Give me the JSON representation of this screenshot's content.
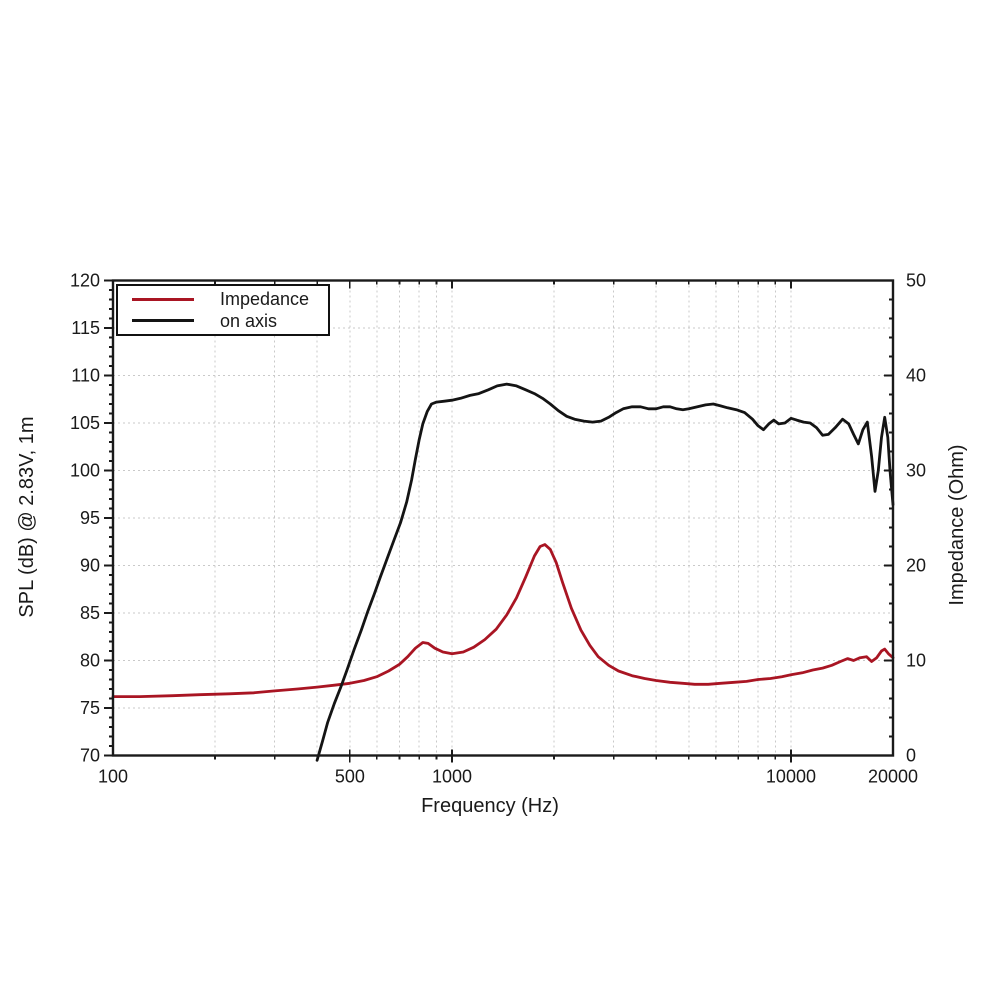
{
  "chart_data": {
    "type": "line",
    "title": "",
    "xlabel": "Frequency (Hz)",
    "ylabel_left": "SPL (dB) @ 2.83V, 1m",
    "ylabel_right": "Impedance (Ohm)",
    "grid": {
      "on": true,
      "color": "#c9c9c9",
      "style": "dotted",
      "horizontal_step_db": 5
    },
    "axes": {
      "x": {
        "scale": "log",
        "min": 100,
        "max": 20000,
        "labeled_ticks": [
          100,
          500,
          1000,
          10000,
          20000
        ]
      },
      "left": {
        "min": 70,
        "max": 120,
        "tick_step": 5,
        "minor_step": 1
      },
      "right": {
        "min": 0,
        "max": 50,
        "tick_step": 10,
        "minor_step": 2
      }
    },
    "legend": {
      "position": "top-left",
      "entries": [
        {
          "label": "Impedance",
          "color": "#a91523"
        },
        {
          "label": "on axis",
          "color": "#141414"
        }
      ]
    },
    "series": [
      {
        "name": "Impedance",
        "axis": "right",
        "units": "Ohm",
        "color": "#a91523",
        "points": [
          [
            100,
            6.2
          ],
          [
            120,
            6.2
          ],
          [
            150,
            6.3
          ],
          [
            180,
            6.4
          ],
          [
            220,
            6.5
          ],
          [
            260,
            6.6
          ],
          [
            300,
            6.8
          ],
          [
            350,
            7.0
          ],
          [
            400,
            7.2
          ],
          [
            450,
            7.4
          ],
          [
            500,
            7.6
          ],
          [
            550,
            7.9
          ],
          [
            600,
            8.3
          ],
          [
            650,
            8.9
          ],
          [
            700,
            9.6
          ],
          [
            740,
            10.4
          ],
          [
            780,
            11.3
          ],
          [
            820,
            11.9
          ],
          [
            850,
            11.8
          ],
          [
            890,
            11.3
          ],
          [
            940,
            10.9
          ],
          [
            1000,
            10.7
          ],
          [
            1080,
            10.9
          ],
          [
            1160,
            11.4
          ],
          [
            1250,
            12.2
          ],
          [
            1350,
            13.3
          ],
          [
            1450,
            14.8
          ],
          [
            1550,
            16.6
          ],
          [
            1650,
            18.8
          ],
          [
            1750,
            21.0
          ],
          [
            1820,
            22.0
          ],
          [
            1880,
            22.2
          ],
          [
            1950,
            21.7
          ],
          [
            2030,
            20.3
          ],
          [
            2120,
            18.2
          ],
          [
            2250,
            15.5
          ],
          [
            2400,
            13.2
          ],
          [
            2550,
            11.6
          ],
          [
            2700,
            10.4
          ],
          [
            2900,
            9.5
          ],
          [
            3100,
            8.9
          ],
          [
            3400,
            8.4
          ],
          [
            3700,
            8.1
          ],
          [
            4000,
            7.9
          ],
          [
            4400,
            7.7
          ],
          [
            4800,
            7.6
          ],
          [
            5200,
            7.5
          ],
          [
            5700,
            7.5
          ],
          [
            6200,
            7.6
          ],
          [
            6800,
            7.7
          ],
          [
            7400,
            7.8
          ],
          [
            8000,
            8.0
          ],
          [
            8700,
            8.1
          ],
          [
            9400,
            8.3
          ],
          [
            10000,
            8.5
          ],
          [
            10800,
            8.7
          ],
          [
            11600,
            9.0
          ],
          [
            12400,
            9.2
          ],
          [
            13200,
            9.5
          ],
          [
            14000,
            9.9
          ],
          [
            14700,
            10.2
          ],
          [
            15300,
            10.0
          ],
          [
            16000,
            10.3
          ],
          [
            16700,
            10.4
          ],
          [
            17300,
            9.9
          ],
          [
            17900,
            10.3
          ],
          [
            18500,
            11.0
          ],
          [
            18900,
            11.2
          ],
          [
            19400,
            10.7
          ],
          [
            20000,
            10.3
          ]
        ]
      },
      {
        "name": "on axis",
        "axis": "left",
        "units": "dB",
        "color": "#141414",
        "points": [
          [
            400,
            69.5
          ],
          [
            415,
            71.5
          ],
          [
            430,
            73.5
          ],
          [
            450,
            75.5
          ],
          [
            470,
            77.2
          ],
          [
            490,
            79.0
          ],
          [
            515,
            81.2
          ],
          [
            540,
            83.2
          ],
          [
            565,
            85.2
          ],
          [
            590,
            87.0
          ],
          [
            615,
            88.8
          ],
          [
            645,
            90.8
          ],
          [
            675,
            92.7
          ],
          [
            705,
            94.5
          ],
          [
            735,
            96.7
          ],
          [
            760,
            99.0
          ],
          [
            780,
            101.2
          ],
          [
            800,
            103.2
          ],
          [
            820,
            104.9
          ],
          [
            845,
            106.2
          ],
          [
            870,
            107.0
          ],
          [
            900,
            107.2
          ],
          [
            950,
            107.3
          ],
          [
            1000,
            107.4
          ],
          [
            1060,
            107.6
          ],
          [
            1130,
            107.9
          ],
          [
            1200,
            108.1
          ],
          [
            1280,
            108.5
          ],
          [
            1360,
            108.9
          ],
          [
            1450,
            109.1
          ],
          [
            1550,
            108.9
          ],
          [
            1650,
            108.5
          ],
          [
            1750,
            108.1
          ],
          [
            1850,
            107.6
          ],
          [
            1950,
            107.0
          ],
          [
            2060,
            106.3
          ],
          [
            2180,
            105.7
          ],
          [
            2300,
            105.4
          ],
          [
            2450,
            105.2
          ],
          [
            2600,
            105.1
          ],
          [
            2750,
            105.2
          ],
          [
            2900,
            105.6
          ],
          [
            3050,
            106.1
          ],
          [
            3200,
            106.5
          ],
          [
            3400,
            106.7
          ],
          [
            3600,
            106.7
          ],
          [
            3800,
            106.5
          ],
          [
            4000,
            106.5
          ],
          [
            4200,
            106.7
          ],
          [
            4400,
            106.7
          ],
          [
            4600,
            106.5
          ],
          [
            4800,
            106.4
          ],
          [
            5000,
            106.5
          ],
          [
            5300,
            106.7
          ],
          [
            5600,
            106.9
          ],
          [
            5900,
            107.0
          ],
          [
            6200,
            106.8
          ],
          [
            6500,
            106.6
          ],
          [
            6900,
            106.4
          ],
          [
            7300,
            106.1
          ],
          [
            7700,
            105.4
          ],
          [
            8000,
            104.7
          ],
          [
            8300,
            104.3
          ],
          [
            8600,
            104.9
          ],
          [
            8900,
            105.3
          ],
          [
            9200,
            104.9
          ],
          [
            9600,
            105.0
          ],
          [
            10000,
            105.5
          ],
          [
            10400,
            105.3
          ],
          [
            10900,
            105.1
          ],
          [
            11400,
            105.0
          ],
          [
            11900,
            104.5
          ],
          [
            12400,
            103.7
          ],
          [
            12900,
            103.8
          ],
          [
            13500,
            104.5
          ],
          [
            14200,
            105.4
          ],
          [
            14800,
            104.9
          ],
          [
            15300,
            103.8
          ],
          [
            15800,
            102.8
          ],
          [
            16300,
            104.3
          ],
          [
            16800,
            105.1
          ],
          [
            17300,
            101.5
          ],
          [
            17700,
            97.8
          ],
          [
            18100,
            100.0
          ],
          [
            18500,
            103.5
          ],
          [
            18900,
            105.6
          ],
          [
            19300,
            103.5
          ],
          [
            19600,
            100.0
          ],
          [
            20000,
            96.4
          ]
        ]
      }
    ]
  },
  "frame": {
    "color": "#1a1a1a"
  }
}
